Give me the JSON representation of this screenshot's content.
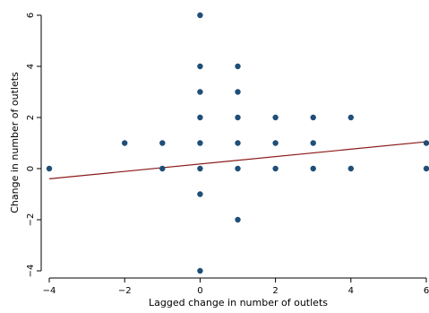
{
  "chart_data": {
    "type": "scatter",
    "title": "",
    "xlabel": "Lagged change in number of outlets",
    "ylabel": "Change in number of outlets",
    "xlim": [
      -4,
      6
    ],
    "ylim": [
      -4,
      6
    ],
    "x_ticks": [
      -4,
      -2,
      0,
      2,
      4,
      6
    ],
    "y_ticks": [
      -4,
      -2,
      0,
      2,
      4,
      6
    ],
    "x_tick_labels": [
      "−4",
      "−2",
      "0",
      "2",
      "4",
      "6"
    ],
    "y_tick_labels": [
      "−4",
      "−2",
      "0",
      "2",
      "4",
      "6"
    ],
    "grid": false,
    "legend": "none",
    "colors": {
      "points": "#1f4e79",
      "fit_line": "#8b1a1a",
      "axis": "#000000"
    },
    "series": [
      {
        "type": "scatter",
        "points": [
          [
            -4,
            0
          ],
          [
            -2,
            1
          ],
          [
            -1,
            1
          ],
          [
            -1,
            0
          ],
          [
            0,
            6
          ],
          [
            0,
            4
          ],
          [
            0,
            3
          ],
          [
            0,
            2
          ],
          [
            0,
            1
          ],
          [
            0,
            0
          ],
          [
            0,
            -1
          ],
          [
            0,
            -4
          ],
          [
            1,
            4
          ],
          [
            1,
            3
          ],
          [
            1,
            2
          ],
          [
            1,
            1
          ],
          [
            1,
            0
          ],
          [
            1,
            -2
          ],
          [
            2,
            2
          ],
          [
            2,
            1
          ],
          [
            2,
            0
          ],
          [
            3,
            2
          ],
          [
            3,
            1
          ],
          [
            3,
            0
          ],
          [
            4,
            2
          ],
          [
            4,
            0
          ],
          [
            6,
            1
          ],
          [
            6,
            0
          ]
        ]
      },
      {
        "type": "line",
        "fit": "linear",
        "points": [
          [
            -4,
            -0.4
          ],
          [
            6,
            1.05
          ]
        ]
      }
    ]
  }
}
